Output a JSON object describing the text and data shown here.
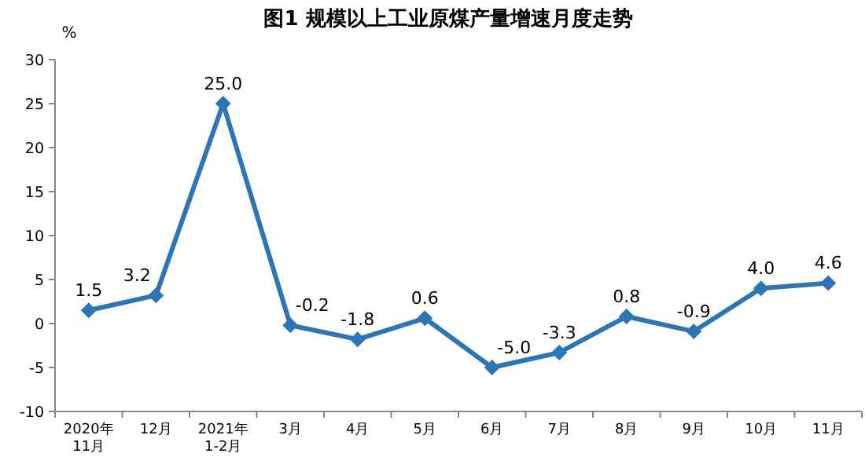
{
  "chart_data": {
    "type": "line",
    "title": "图1  规模以上工业原煤产量增速月度走势",
    "ylabel": "%",
    "categories": [
      "2020年\n11月",
      "12月",
      "2021年\n1-2月",
      "3月",
      "4月",
      "5月",
      "6月",
      "7月",
      "8月",
      "9月",
      "10月",
      "11月"
    ],
    "values": [
      1.5,
      3.2,
      25.0,
      -0.2,
      -1.8,
      0.6,
      -5.0,
      -3.3,
      0.8,
      -0.9,
      4.0,
      4.6
    ],
    "value_labels": [
      "1.5",
      "3.2",
      "25.0",
      "-0.2",
      "-1.8",
      "0.6",
      "-5.0",
      "-3.3",
      "0.8",
      "-0.9",
      "4.0",
      "4.6"
    ],
    "color": "#2e75b6",
    "marker": "diamond",
    "line_style": "solid",
    "ylim": [
      -10,
      30
    ],
    "yticks": [
      -10,
      -5,
      0,
      5,
      10,
      15,
      20,
      25,
      30
    ]
  }
}
